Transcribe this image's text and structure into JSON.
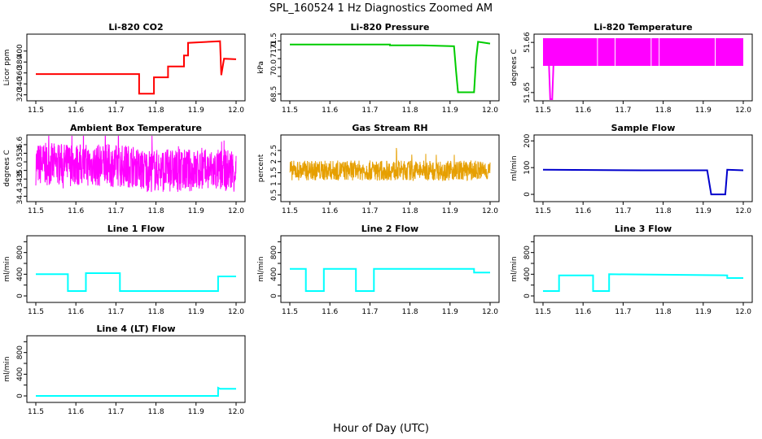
{
  "figure": {
    "title": "SPL_160524  1 Hz Diagnostics Zoomed AM",
    "xlabel": "Hour of Day (UTC)"
  },
  "chart_data": [
    {
      "id": "co2",
      "type": "line",
      "title": "Li-820 CO2",
      "ylabel": "Licor ppm",
      "color": "#ff0000",
      "noise": 0,
      "xlim": [
        11.5,
        12.0
      ],
      "ylim": [
        315,
        425
      ],
      "yticks": [
        320,
        340,
        360,
        380,
        400
      ],
      "x": [
        11.5,
        11.758,
        11.758,
        11.795,
        11.795,
        11.83,
        11.83,
        11.87,
        11.87,
        11.88,
        11.88,
        11.96,
        11.963,
        11.97,
        12.0
      ],
      "y": [
        358,
        358,
        322,
        322,
        352,
        352,
        372,
        372,
        392,
        392,
        415,
        418,
        356,
        386,
        385
      ]
    },
    {
      "id": "pressure",
      "type": "line",
      "title": "Li-820 Pressure",
      "ylabel": "kPa",
      "color": "#00cc00",
      "noise": 0,
      "xlim": [
        11.5,
        12.0
      ],
      "ylim": [
        68.3,
        71.7
      ],
      "yticks": [
        68.5,
        69.5,
        70.0,
        70.5,
        71.0,
        71.5
      ],
      "ytick_labels": [
        "68.5",
        "",
        "70.0",
        "",
        "71.0",
        "71.5"
      ],
      "x": [
        11.5,
        11.75,
        11.75,
        11.83,
        11.91,
        11.915,
        11.92,
        11.96,
        11.965,
        11.97,
        12.0
      ],
      "y": [
        71.3,
        71.3,
        71.25,
        71.25,
        71.2,
        69.8,
        68.6,
        68.6,
        70.5,
        71.45,
        71.35
      ]
    },
    {
      "id": "licor_temp",
      "type": "line",
      "title": "Li-820 Temperature",
      "ylabel": "degrees C",
      "color": "#ff00ff",
      "noise": 0,
      "xlim": [
        11.5,
        12.0
      ],
      "ylim": [
        51.649,
        51.661
      ],
      "yticks": [
        51.65,
        51.655,
        51.66
      ],
      "ytick_labels": [
        "51.65",
        "",
        "51.66"
      ],
      "x": [
        11.5,
        11.515,
        11.518,
        11.523,
        11.526,
        12.0
      ],
      "y": [
        51.66,
        51.66,
        51.65,
        51.65,
        51.66,
        51.66
      ]
    },
    {
      "id": "box_temp",
      "type": "line",
      "title": "Ambient Box Temperature",
      "ylabel": "degrees C",
      "color": "#ff00ff",
      "noise": 0.5,
      "xlim": [
        11.5,
        12.0
      ],
      "ylim": [
        34.35,
        35.75
      ],
      "yticks": [
        34.4,
        34.6,
        34.8,
        35.0,
        35.2,
        35.4,
        35.6
      ],
      "ytick_labels": [
        "34.4",
        "",
        "34.8",
        "35.0",
        "",
        "35.4",
        "35.6"
      ],
      "x": [
        11.5,
        11.75,
        11.76,
        12.0
      ],
      "y": [
        35.15,
        35.1,
        35.0,
        35.0
      ]
    },
    {
      "id": "gas_rh",
      "type": "line",
      "title": "Gas Stream RH",
      "ylabel": "percent",
      "color": "#e69f00",
      "noise": 0.45,
      "xlim": [
        11.5,
        12.0
      ],
      "ylim": [
        0.35,
        3.05
      ],
      "yticks": [
        0.5,
        1.0,
        1.5,
        2.0,
        2.5
      ],
      "x": [
        11.5,
        12.0
      ],
      "y": [
        1.6,
        1.6
      ]
    },
    {
      "id": "sample_flow",
      "type": "line",
      "title": "Sample Flow",
      "ylabel": "ml/min",
      "color": "#0000cc",
      "noise": 0,
      "xlim": [
        11.5,
        12.0
      ],
      "ylim": [
        -15,
        210
      ],
      "yticks": [
        0,
        100,
        200
      ],
      "x": [
        11.5,
        11.75,
        11.91,
        11.92,
        11.955,
        11.96,
        12.0
      ],
      "y": [
        92,
        90,
        90,
        0,
        0,
        92,
        90
      ]
    },
    {
      "id": "line1",
      "type": "line",
      "title": "Line 1 Flow",
      "ylabel": "ml/min",
      "color": "#00ffff",
      "noise": 0,
      "xlim": [
        11.5,
        12.0
      ],
      "ylim": [
        -60,
        1050
      ],
      "yticks": [
        0,
        200,
        400,
        600,
        800,
        1000
      ],
      "ytick_labels": [
        "0",
        "",
        "400",
        "",
        "800",
        ""
      ],
      "x": [
        11.5,
        11.58,
        11.58,
        11.625,
        11.625,
        11.71,
        11.71,
        11.955,
        11.955,
        12.0
      ],
      "y": [
        400,
        400,
        90,
        90,
        420,
        420,
        90,
        90,
        360,
        360
      ]
    },
    {
      "id": "line2",
      "type": "line",
      "title": "Line 2 Flow",
      "ylabel": "ml/min",
      "color": "#00ffff",
      "noise": 0,
      "xlim": [
        11.5,
        12.0
      ],
      "ylim": [
        -60,
        1050
      ],
      "yticks": [
        0,
        200,
        400,
        600,
        800,
        1000
      ],
      "ytick_labels": [
        "0",
        "",
        "400",
        "",
        "800",
        ""
      ],
      "x": [
        11.5,
        11.54,
        11.54,
        11.585,
        11.585,
        11.665,
        11.665,
        11.71,
        11.71,
        11.96,
        11.96,
        12.0
      ],
      "y": [
        500,
        500,
        90,
        90,
        500,
        500,
        90,
        90,
        500,
        500,
        430,
        430
      ]
    },
    {
      "id": "line3",
      "type": "line",
      "title": "Line 3 Flow",
      "ylabel": "ml/min",
      "color": "#00ffff",
      "noise": 0,
      "xlim": [
        11.5,
        12.0
      ],
      "ylim": [
        -60,
        1050
      ],
      "yticks": [
        0,
        200,
        400,
        600,
        800,
        1000
      ],
      "ytick_labels": [
        "0",
        "",
        "400",
        "",
        "800",
        ""
      ],
      "x": [
        11.5,
        11.54,
        11.54,
        11.625,
        11.625,
        11.665,
        11.665,
        11.96,
        11.96,
        12.0
      ],
      "y": [
        90,
        90,
        380,
        380,
        90,
        90,
        400,
        380,
        330,
        330
      ]
    },
    {
      "id": "line4",
      "type": "line",
      "title": "Line 4 (LT) Flow",
      "ylabel": "ml/min",
      "color": "#00ffff",
      "noise": 0,
      "xlim": [
        11.5,
        12.0
      ],
      "ylim": [
        -60,
        1050
      ],
      "yticks": [
        0,
        200,
        400,
        600,
        800,
        1000
      ],
      "ytick_labels": [
        "0",
        "",
        "400",
        "",
        "800",
        ""
      ],
      "x": [
        11.5,
        11.955,
        11.955,
        11.96,
        12.0
      ],
      "y": [
        0,
        0,
        150,
        130,
        130
      ]
    }
  ],
  "x_axis": {
    "ticks": [
      11.5,
      11.6,
      11.7,
      11.8,
      11.9,
      12.0
    ],
    "tick_labels": [
      "11.5",
      "11.6",
      "11.7",
      "11.8",
      "11.9",
      "12.0"
    ]
  }
}
